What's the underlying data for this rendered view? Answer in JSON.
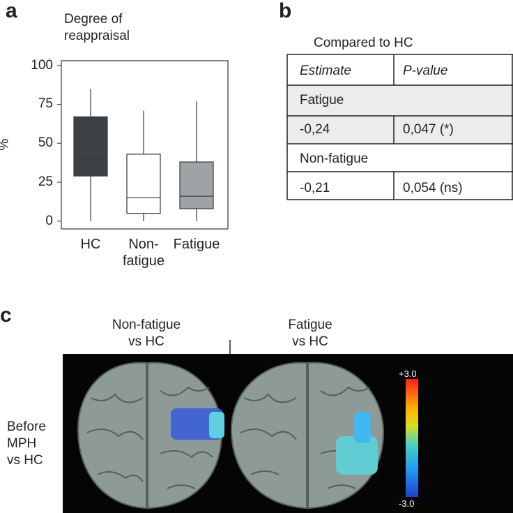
{
  "chart_data": {
    "type": "box",
    "panel_label": "a",
    "title": "Degree of\nreappraisal",
    "y_label": "%",
    "categories": [
      "HC",
      "Non-\nfatigue",
      "Fatigue"
    ],
    "boxes": [
      {
        "min": 0,
        "q1": 29,
        "median": 44,
        "q3": 67,
        "max": 85,
        "color": "#3d4043"
      },
      {
        "min": 0,
        "q1": 5,
        "median": 15,
        "q3": 43,
        "max": 71,
        "color": "#ffffff"
      },
      {
        "min": 0,
        "q1": 8,
        "median": 16,
        "q3": 38,
        "max": 77,
        "color": "#a0a3a5"
      }
    ],
    "ylim": [
      -5,
      103
    ],
    "yticks": [
      0,
      25,
      50,
      75,
      100
    ]
  },
  "table": {
    "panel_label": "b",
    "title": "Compared to HC",
    "header": [
      "Estimate",
      "P-value"
    ],
    "groups": [
      {
        "name": "Fatigue",
        "row": [
          "-0,24",
          "0,047 (*)"
        ]
      },
      {
        "name": "Non-fatigue",
        "row": [
          "-0,21",
          "0,054 (ns)"
        ]
      }
    ]
  },
  "brain": {
    "panel_label": "c",
    "columns": [
      "Non-fatigue\nvs HC",
      "Fatigue\nvs HC"
    ],
    "row_label": "Before\nMPH\nvs HC",
    "colorbar": [
      "+3.0",
      "-3.0"
    ]
  }
}
